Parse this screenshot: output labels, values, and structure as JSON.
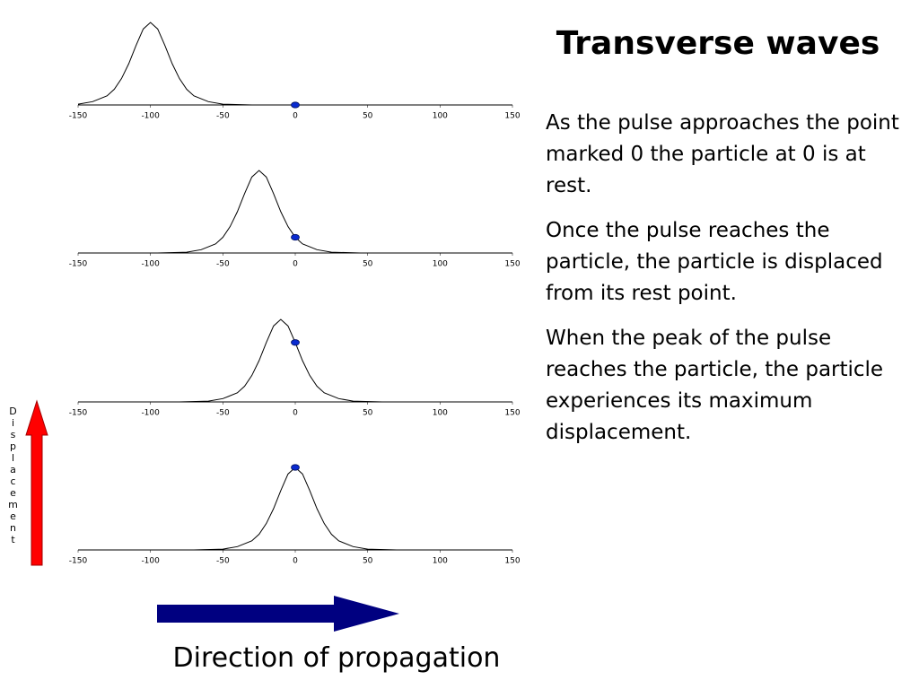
{
  "title": "Transverse waves",
  "paragraphs": [
    "As the pulse approaches the point marked 0 the particle at 0 is at rest.",
    "Once the pulse reaches the particle, the particle is displaced from its rest point.",
    "When the peak of the pulse reaches the particle, the particle experiences its maximum displacement."
  ],
  "labels": {
    "displacement": "Displacement",
    "propagation": "Direction of propagation"
  },
  "chart_data": [
    {
      "type": "line",
      "color": "#000000",
      "xlim": [
        -150,
        150
      ],
      "xticks": [
        -150,
        -100,
        -50,
        0,
        50,
        100,
        150
      ],
      "ylim": [
        0,
        1
      ],
      "x": [
        -150,
        -140,
        -130,
        -125,
        -120,
        -115,
        -110,
        -105,
        -100,
        -95,
        -90,
        -85,
        -80,
        -75,
        -70,
        -60,
        -50,
        -30,
        150
      ],
      "values": [
        0.01,
        0.04,
        0.11,
        0.19,
        0.32,
        0.5,
        0.72,
        0.92,
        1,
        0.92,
        0.72,
        0.5,
        0.32,
        0.19,
        0.11,
        0.04,
        0.01,
        0,
        0
      ],
      "marker": {
        "x": 0,
        "y": 0,
        "color": "#0a2bd0"
      }
    },
    {
      "type": "line",
      "color": "#000000",
      "xlim": [
        -150,
        150
      ],
      "xticks": [
        -150,
        -100,
        -50,
        0,
        50,
        100,
        150
      ],
      "ylim": [
        0,
        1
      ],
      "x": [
        -150,
        -95,
        -75,
        -65,
        -55,
        -50,
        -45,
        -40,
        -35,
        -30,
        -25,
        -20,
        -15,
        -10,
        -5,
        0,
        5,
        15,
        25,
        45,
        150
      ],
      "values": [
        0,
        0,
        0.01,
        0.04,
        0.11,
        0.19,
        0.32,
        0.5,
        0.72,
        0.92,
        1,
        0.92,
        0.72,
        0.5,
        0.32,
        0.19,
        0.11,
        0.04,
        0.01,
        0,
        0
      ],
      "marker": {
        "x": 0,
        "y": 0.19,
        "color": "#0a2bd0"
      }
    },
    {
      "type": "line",
      "color": "#000000",
      "xlim": [
        -150,
        150
      ],
      "xticks": [
        -150,
        -100,
        -50,
        0,
        50,
        100,
        150
      ],
      "ylim": [
        0,
        1
      ],
      "x": [
        -150,
        -80,
        -60,
        -50,
        -40,
        -35,
        -30,
        -25,
        -20,
        -15,
        -10,
        -5,
        0,
        5,
        10,
        15,
        20,
        30,
        40,
        60,
        150
      ],
      "values": [
        0,
        0,
        0.01,
        0.04,
        0.11,
        0.19,
        0.32,
        0.5,
        0.72,
        0.92,
        1,
        0.92,
        0.72,
        0.5,
        0.32,
        0.19,
        0.11,
        0.04,
        0.01,
        0,
        0
      ],
      "marker": {
        "x": 0,
        "y": 0.72,
        "color": "#0a2bd0"
      }
    },
    {
      "type": "line",
      "color": "#000000",
      "xlim": [
        -150,
        150
      ],
      "xticks": [
        -150,
        -100,
        -50,
        0,
        50,
        100,
        150
      ],
      "ylim": [
        0,
        1
      ],
      "x": [
        -150,
        -70,
        -50,
        -40,
        -30,
        -25,
        -20,
        -15,
        -10,
        -5,
        0,
        5,
        10,
        15,
        20,
        25,
        30,
        40,
        50,
        70,
        150
      ],
      "values": [
        0,
        0,
        0.01,
        0.04,
        0.11,
        0.19,
        0.32,
        0.5,
        0.72,
        0.92,
        1,
        0.92,
        0.72,
        0.5,
        0.32,
        0.19,
        0.11,
        0.04,
        0.01,
        0,
        0
      ],
      "marker": {
        "x": 0,
        "y": 1,
        "color": "#0a2bd0"
      }
    }
  ]
}
